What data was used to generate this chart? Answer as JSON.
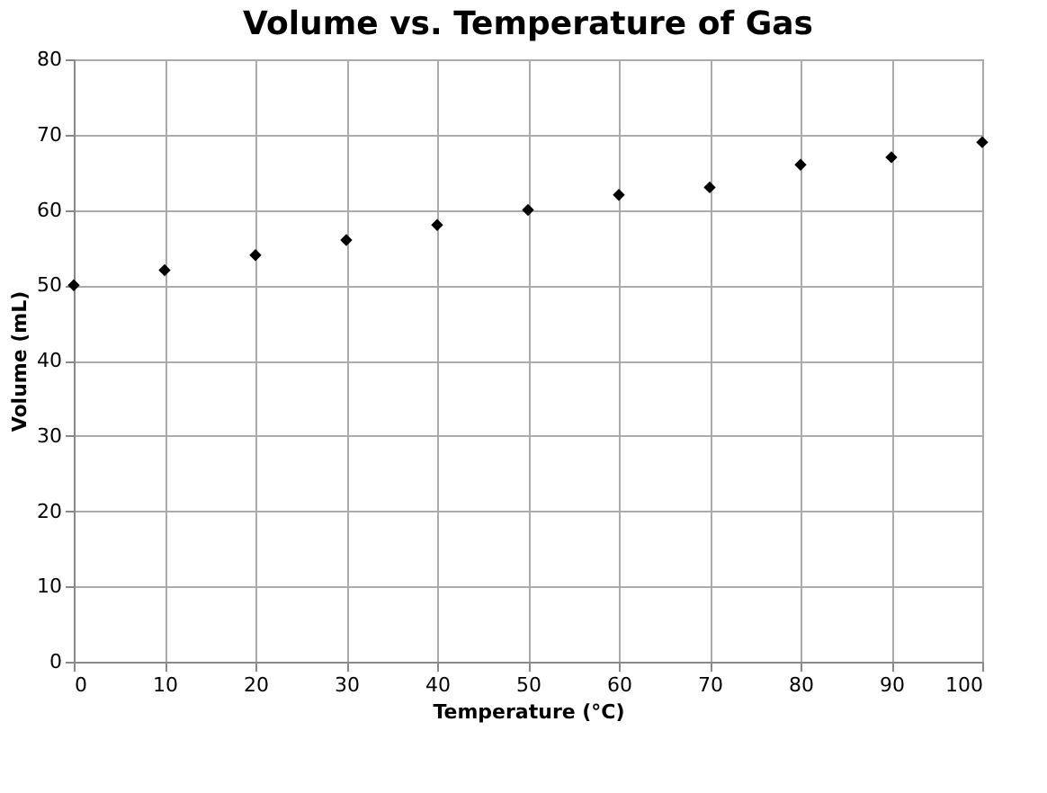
{
  "chart_data": {
    "type": "scatter",
    "title": "Volume vs. Temperature of Gas",
    "xlabel": "Temperature (°C)",
    "ylabel": "Volume (mL)",
    "x": [
      0,
      10,
      20,
      30,
      40,
      50,
      60,
      70,
      80,
      90,
      100
    ],
    "series": [
      {
        "color": "#000000",
        "values": [
          50,
          52,
          54,
          56,
          58,
          60,
          62,
          63,
          66,
          67,
          69
        ]
      }
    ],
    "xlim": [
      0,
      100
    ],
    "xticks": [
      0,
      10,
      20,
      30,
      40,
      50,
      60,
      70,
      80,
      90,
      100
    ],
    "ylim": [
      0,
      80
    ],
    "yticks": [
      0,
      10,
      20,
      30,
      40,
      50,
      60,
      70,
      80
    ],
    "grid": true,
    "marker": "diamond"
  }
}
